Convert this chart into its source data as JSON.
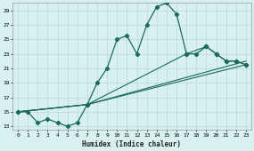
{
  "xlabel": "Humidex (Indice chaleur)",
  "bg_color": "#d9f0f0",
  "grid_color": "#b8d8d8",
  "line_color": "#1a6b5a",
  "xlim": [
    -0.5,
    23.5
  ],
  "ylim": [
    12.5,
    30.0
  ],
  "xticks": [
    0,
    1,
    2,
    3,
    4,
    5,
    6,
    7,
    8,
    9,
    10,
    11,
    12,
    13,
    14,
    15,
    16,
    17,
    18,
    19,
    20,
    21,
    22,
    23
  ],
  "yticks": [
    13,
    15,
    17,
    19,
    21,
    23,
    25,
    27,
    29
  ],
  "main_x": [
    0,
    1,
    2,
    3,
    4,
    5,
    6,
    7,
    8,
    9,
    10,
    11,
    12,
    13,
    14,
    15,
    16,
    17,
    18,
    19,
    20,
    21,
    22,
    23
  ],
  "main_y": [
    15,
    15,
    13.5,
    14,
    13.5,
    13,
    13.5,
    16,
    19,
    21,
    25,
    25.5,
    23,
    27,
    29.5,
    30,
    28.5,
    23,
    23,
    24,
    23,
    22,
    22,
    21.5
  ],
  "line2_x": [
    0,
    7,
    23
  ],
  "line2_y": [
    15,
    16,
    22
  ],
  "line3_x": [
    0,
    7,
    23
  ],
  "line3_y": [
    15,
    16,
    21.5
  ],
  "line4_x": [
    0,
    7,
    17,
    19,
    20,
    21,
    22,
    23
  ],
  "line4_y": [
    15,
    16,
    23,
    24,
    23,
    22,
    22,
    21.5
  ]
}
